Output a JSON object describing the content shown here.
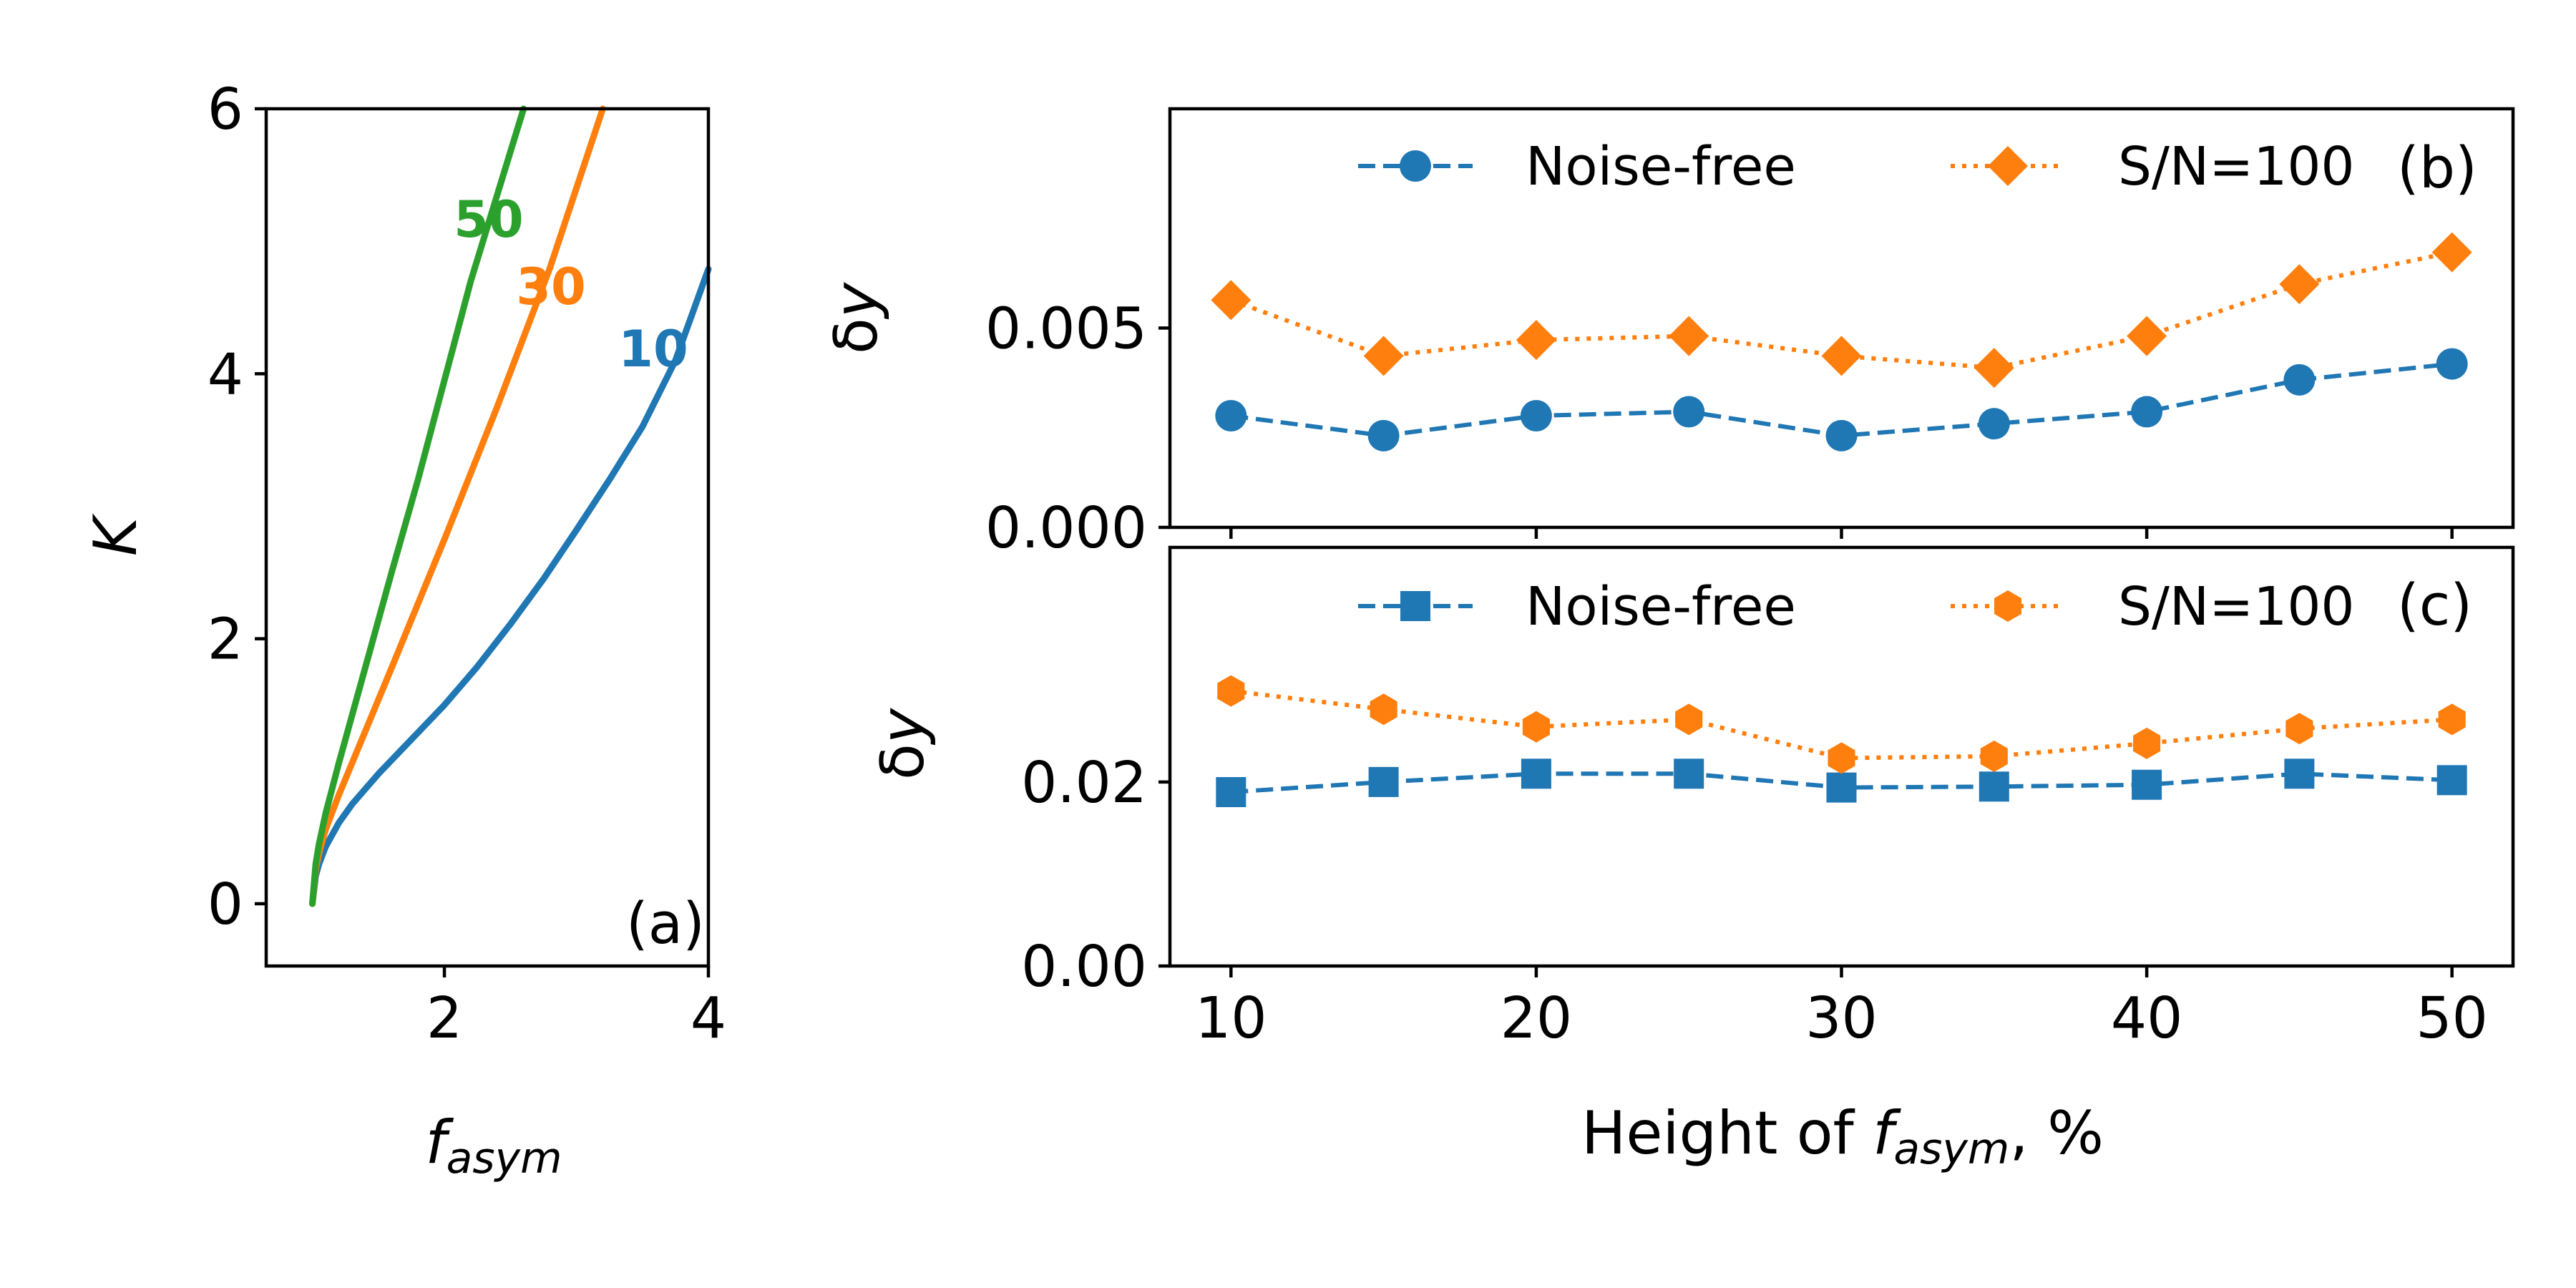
{
  "chart_data": [
    {
      "panel": "(a)",
      "type": "line",
      "xlabel": "f_asym",
      "ylabel": "K",
      "xlim": [
        0.65,
        4.0
      ],
      "ylim": [
        -0.47,
        6.0
      ],
      "xticks": [
        2,
        4
      ],
      "yticks": [
        0,
        2,
        4,
        6
      ],
      "grid": false,
      "series": [
        {
          "name": "10",
          "color": "#1f77b4",
          "x": [
            1.0,
            1.025,
            1.05,
            1.1,
            1.2,
            1.3,
            1.5,
            1.75,
            2.0,
            2.25,
            2.5,
            2.75,
            3.0,
            3.25,
            3.5,
            3.75,
            4.0
          ],
          "y": [
            0.0,
            0.21,
            0.3,
            0.43,
            0.61,
            0.75,
            0.98,
            1.24,
            1.5,
            1.79,
            2.11,
            2.45,
            2.82,
            3.2,
            3.6,
            4.1,
            4.79
          ]
        },
        {
          "name": "30",
          "color": "#ff7f0e",
          "x": [
            1.0,
            1.025,
            1.05,
            1.1,
            1.2,
            1.4,
            1.6,
            2.0,
            2.4,
            2.8,
            3.0,
            3.2
          ],
          "y": [
            0.0,
            0.26,
            0.38,
            0.56,
            0.82,
            1.3,
            1.78,
            2.75,
            3.75,
            4.8,
            5.4,
            6.0
          ]
        },
        {
          "name": "50",
          "color": "#2ca02c",
          "x": [
            1.0,
            1.025,
            1.05,
            1.1,
            1.2,
            1.4,
            1.6,
            1.8,
            2.0,
            2.2,
            2.4,
            2.6
          ],
          "y": [
            0.0,
            0.3,
            0.45,
            0.68,
            1.06,
            1.78,
            2.5,
            3.2,
            3.95,
            4.7,
            5.35,
            6.0
          ]
        }
      ]
    },
    {
      "panel": "(b)",
      "type": "line",
      "xlabel": "",
      "ylabel": "δy",
      "ylim": [
        0.0,
        0.0105
      ],
      "yticks": [
        "0.000",
        "0.005"
      ],
      "xlim": [
        8,
        52
      ],
      "x": [
        10,
        15,
        20,
        25,
        30,
        35,
        40,
        45,
        50
      ],
      "grid": false,
      "legend": "top-center",
      "series": [
        {
          "name": "Noise-free",
          "color": "#1f77b4",
          "marker": "circle",
          "linestyle": "dashed",
          "values": [
            0.0028,
            0.0023,
            0.0028,
            0.0029,
            0.0023,
            0.0026,
            0.0029,
            0.0037,
            0.0041
          ]
        },
        {
          "name": "S/N=100",
          "color": "#ff7f0e",
          "marker": "diamond",
          "linestyle": "dotted",
          "values": [
            0.0057,
            0.0043,
            0.0047,
            0.0048,
            0.0043,
            0.004,
            0.0048,
            0.0061,
            0.0069
          ]
        }
      ]
    },
    {
      "panel": "(c)",
      "type": "line",
      "xlabel": "Height of f_asym, %",
      "ylabel": "δy",
      "ylim": [
        0.0,
        0.0455
      ],
      "yticks": [
        "0.00",
        "0.02"
      ],
      "xlim": [
        8,
        52
      ],
      "x": [
        10,
        15,
        20,
        25,
        30,
        35,
        40,
        45,
        50
      ],
      "xticks": [
        10,
        20,
        30,
        40,
        50
      ],
      "grid": false,
      "legend": "top-center",
      "series": [
        {
          "name": "Noise-free",
          "color": "#1f77b4",
          "marker": "square",
          "linestyle": "dashed",
          "values": [
            0.0189,
            0.02,
            0.0209,
            0.0209,
            0.0194,
            0.0195,
            0.0197,
            0.0209,
            0.0202
          ]
        },
        {
          "name": "S/N=100",
          "color": "#ff7f0e",
          "marker": "hexagon",
          "linestyle": "dotted",
          "values": [
            0.0299,
            0.0279,
            0.026,
            0.0268,
            0.0226,
            0.0228,
            0.0242,
            0.0258,
            0.0268
          ]
        }
      ]
    }
  ],
  "labels": {
    "a_xlabel_main": "f",
    "a_xlabel_sub": "asym",
    "a_ylabel": "K",
    "b_ylabel_main": "δ",
    "b_ylabel_var": "y",
    "c_ylabel_main": "δ",
    "c_ylabel_var": "y",
    "c_xlabel_prefix": "Height of ",
    "c_xlabel_f": "f",
    "c_xlabel_sub": "asym",
    "c_xlabel_suffix": ", %",
    "panel_a": "(a)",
    "panel_b": "(b)",
    "panel_c": "(c)",
    "curve_10": "10",
    "curve_30": "30",
    "curve_50": "50",
    "legend_noise_free": "Noise-free",
    "legend_sn": "S/N=100"
  }
}
